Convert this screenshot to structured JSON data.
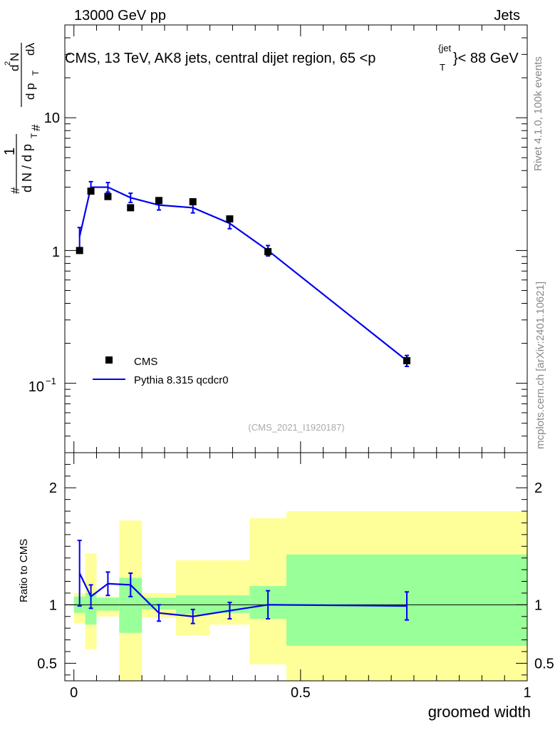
{
  "header": {
    "energy_label": "13000 GeV pp",
    "category_label": "Jets"
  },
  "side_labels": {
    "rivet": "Rivet 4.1.0,  100k events",
    "mcplots": "mcplots.cern.ch [arXiv:2401.10621]"
  },
  "colors": {
    "mc_line": "#0000ee",
    "data_marker": "#000000",
    "band_stat": "#99ff99",
    "band_total": "#ffff99"
  },
  "chart_data": [
    {
      "type": "line",
      "panel": "main",
      "title": "CMS, 13 TeV, AK8 jets, central dijet region, 65 <p",
      "title_sup": "{jet",
      "title_sub": "T",
      "title_tail": "}< 88 GeV",
      "watermark": "(CMS_2021_I1920187)",
      "yscale": "log",
      "ylim": [
        0.03,
        50
      ],
      "xlim": [
        -0.02,
        1.0
      ],
      "ylabel": {
        "hash1": "#",
        "one": "1",
        "dN": "d N / d p",
        "T1": "T",
        "hash2": "#",
        "numer": "d",
        "sup2": "2",
        "N": "N",
        "denom": "d p",
        "T2": "T",
        "dl": "dλ"
      },
      "ytick_labels": {
        "ten": "10",
        "one": "1",
        "tenth_base": "10",
        "tenth_exp": "−1"
      },
      "legend": {
        "data_label": "CMS",
        "mc_label": "Pythia 8.315 qcdcr0",
        "position": "bottom-left"
      },
      "series": [
        {
          "name": "CMS",
          "x": [
            0.0125,
            0.0375,
            0.075,
            0.125,
            0.1875,
            0.2625,
            0.3437,
            0.4281,
            0.7344
          ],
          "y": [
            1.0,
            2.8,
            2.55,
            2.1,
            2.38,
            2.33,
            1.73,
            0.98,
            0.148
          ],
          "err": [
            0.06,
            0.15,
            0.13,
            0.12,
            0.12,
            0.12,
            0.1,
            0.07,
            0.012
          ]
        },
        {
          "name": "Pythia 8.315 qcdcr0",
          "x": [
            0.0125,
            0.0375,
            0.075,
            0.125,
            0.1875,
            0.2625,
            0.3437,
            0.4281,
            0.7344
          ],
          "y": [
            1.27,
            3.0,
            3.0,
            2.5,
            2.2,
            2.1,
            1.6,
            1.0,
            0.148
          ],
          "err": [
            0.22,
            0.3,
            0.25,
            0.2,
            0.18,
            0.18,
            0.14,
            0.09,
            0.014
          ]
        }
      ]
    },
    {
      "type": "line",
      "panel": "ratio",
      "ylabel": "Ratio to CMS",
      "xlabel": "groomed width",
      "xlim": [
        -0.02,
        1.0
      ],
      "ylim": [
        0.35,
        2.3
      ],
      "xtick_labels": [
        "0",
        "0.5",
        "1"
      ],
      "xticks": [
        0,
        0.5,
        1
      ],
      "ytick_labels": [
        "0.5",
        "1",
        "2"
      ],
      "yticks": [
        0.5,
        1,
        2
      ],
      "bin_edges": [
        0.0,
        0.025,
        0.05,
        0.1,
        0.15,
        0.225,
        0.3,
        0.3875,
        0.4688,
        1.0
      ],
      "band_stat": {
        "lo": [
          0.93,
          0.83,
          0.95,
          0.76,
          0.96,
          0.92,
          0.93,
          0.88,
          0.65
        ],
        "hi": [
          1.07,
          1.1,
          1.06,
          1.23,
          1.06,
          1.08,
          1.08,
          1.16,
          1.43
        ]
      },
      "band_total": {
        "lo": [
          0.84,
          0.62,
          0.9,
          0.28,
          0.89,
          0.74,
          0.83,
          0.49,
          0.2
        ],
        "hi": [
          1.1,
          1.44,
          1.07,
          1.72,
          1.1,
          1.38,
          1.38,
          1.74,
          1.8
        ]
      },
      "series": [
        {
          "name": "Pythia 8.315 qcdcr0",
          "x": [
            0.0125,
            0.0375,
            0.075,
            0.125,
            0.1875,
            0.2625,
            0.3437,
            0.4281,
            0.7344
          ],
          "y": [
            1.27,
            1.07,
            1.18,
            1.17,
            0.93,
            0.9,
            0.95,
            1.0,
            0.99
          ],
          "err": [
            0.28,
            0.1,
            0.1,
            0.1,
            0.07,
            0.06,
            0.07,
            0.12,
            0.12
          ]
        }
      ]
    }
  ]
}
